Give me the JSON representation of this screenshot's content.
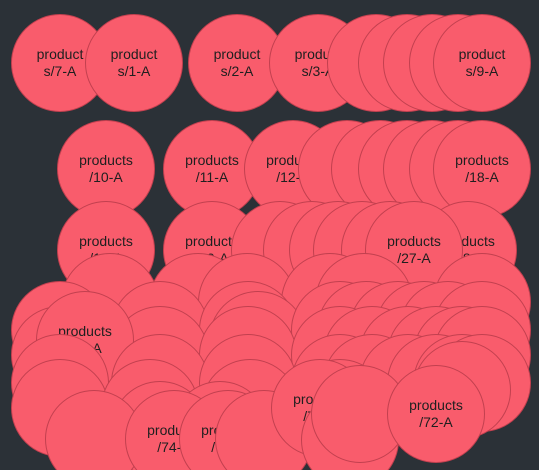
{
  "colors": {
    "background": "#2b3137",
    "node_fill": "#f95c6c",
    "node_border": "#c2404f",
    "node_text": "#1f1f1f"
  },
  "nodes": [
    {
      "label": "product\ns/7-A"
    },
    {
      "label": "product\ns/1-A"
    },
    {
      "label": "product\ns/2-A"
    },
    {
      "label": "product\ns/3-A"
    },
    {
      "label": ""
    },
    {
      "label": ""
    },
    {
      "label": ""
    },
    {
      "label": ""
    },
    {
      "label": "product\ns/9-A"
    },
    {
      "label": "products\n/10-A"
    },
    {
      "label": "products\n/11-A"
    },
    {
      "label": "products\n/12-A"
    },
    {
      "label": ""
    },
    {
      "label": ""
    },
    {
      "label": ""
    },
    {
      "label": ""
    },
    {
      "label": ""
    },
    {
      "label": "products\n/18-A"
    },
    {
      "label": "products\n/19-A"
    },
    {
      "label": "products\n/20-A"
    },
    {
      "label": ""
    },
    {
      "label": ""
    },
    {
      "label": ""
    },
    {
      "label": ""
    },
    {
      "label": ""
    },
    {
      "label": "products\n/28-A"
    },
    {
      "label": "products\n/27-A"
    },
    {
      "label": ""
    },
    {
      "label": ""
    },
    {
      "label": ""
    },
    {
      "label": ""
    },
    {
      "label": ""
    },
    {
      "label": ""
    },
    {
      "label": ""
    },
    {
      "label": ""
    },
    {
      "label": ""
    },
    {
      "label": ""
    },
    {
      "label": ""
    },
    {
      "label": ""
    },
    {
      "label": ""
    },
    {
      "label": ""
    },
    {
      "label": ""
    },
    {
      "label": ""
    },
    {
      "label": ""
    },
    {
      "label": ""
    },
    {
      "label": ""
    },
    {
      "label": ""
    },
    {
      "label": ""
    },
    {
      "label": "products\n/71-A"
    },
    {
      "label": ""
    },
    {
      "label": ""
    },
    {
      "label": ""
    },
    {
      "label": ""
    },
    {
      "label": ""
    },
    {
      "label": ""
    },
    {
      "label": ""
    },
    {
      "label": ""
    },
    {
      "label": ""
    },
    {
      "label": ""
    },
    {
      "label": ""
    },
    {
      "label": ""
    },
    {
      "label": ""
    },
    {
      "label": ""
    },
    {
      "label": ""
    },
    {
      "label": ""
    },
    {
      "label": "products\n/61-A"
    },
    {
      "label": ""
    },
    {
      "label": ""
    },
    {
      "label": ""
    },
    {
      "label": ""
    },
    {
      "label": "products\n/74-A"
    },
    {
      "label": "products\n/75-A"
    },
    {
      "label": ""
    },
    {
      "label": "products\n/77-A"
    },
    {
      "label": ""
    },
    {
      "label": ""
    },
    {
      "label": "products\n/72-A"
    },
    {
      "label": "products\n/73-A"
    }
  ]
}
